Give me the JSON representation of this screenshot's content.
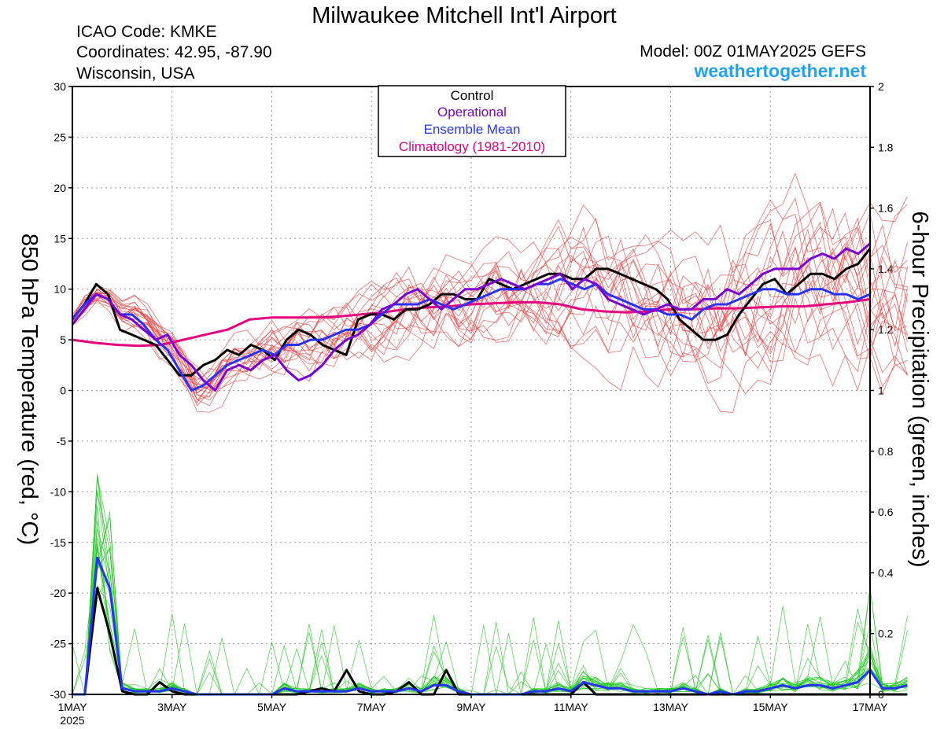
{
  "header": {
    "title": "Milwaukee Mitchell Int'l Airport",
    "icao": "ICAO Code: KMKE",
    "coordinates": "Coordinates: 42.95, -87.90",
    "region": "Wisconsin, USA",
    "model": "Model: 00Z 01MAY2025 GEFS",
    "site": "weathertogether.net"
  },
  "legend": {
    "control": "Control",
    "operational": "Operational",
    "ensemble_mean": "Ensemble Mean",
    "climatology": "Climatology (1981-2010)"
  },
  "colors": {
    "control": "#000000",
    "operational": "#7b00d6",
    "ensemble_mean": "#2633ff",
    "climatology": "#e6007e",
    "members_temp": "#f03c3c",
    "members_precip": "#1fc81f",
    "site": "#1fa3f0"
  },
  "chart_data": {
    "type": "line",
    "ylabel_left": "850 hPa Temperature (red, °C)",
    "ylabel_right": "6-hour Precipitation (green, inches)",
    "x_range_days": [
      1,
      17
    ],
    "x_ticks": [
      {
        "day": 1,
        "label": "1MAY",
        "sub": "2025"
      },
      {
        "day": 3,
        "label": "3MAY"
      },
      {
        "day": 5,
        "label": "5MAY"
      },
      {
        "day": 7,
        "label": "7MAY"
      },
      {
        "day": 9,
        "label": "9MAY"
      },
      {
        "day": 11,
        "label": "11MAY"
      },
      {
        "day": 13,
        "label": "13MAY"
      },
      {
        "day": 15,
        "label": "15MAY"
      },
      {
        "day": 17,
        "label": "17MAY"
      }
    ],
    "y_left_range": [
      -30,
      30
    ],
    "y_left_ticks": [
      30,
      25,
      20,
      15,
      10,
      5,
      0,
      -5,
      -10,
      -15,
      -20,
      -25,
      -30
    ],
    "y_right_range": [
      0,
      2
    ],
    "y_right_ticks": [
      "2",
      "1.8",
      "1.6",
      "1.4",
      "1.2",
      "1",
      "0.8",
      "0.6",
      "0.4",
      "0.2",
      "0"
    ],
    "grid": "dotted",
    "time_step_days": 0.25,
    "temp_series": [
      {
        "name": "Control",
        "values": [
          7,
          8.5,
          10.5,
          9.5,
          6,
          5.5,
          5,
          4.5,
          3,
          1.5,
          1.5,
          2.5,
          3,
          4,
          3.5,
          4.5,
          4,
          3,
          5,
          6,
          5.5,
          4.5,
          4,
          3.5,
          7,
          7.5,
          7.5,
          7,
          8,
          8,
          8.5,
          9.5,
          9.5,
          9,
          9,
          11,
          10.5,
          10,
          10.5,
          11,
          11.5,
          11.5,
          11,
          11,
          12,
          12,
          11.5,
          11,
          10.5,
          10,
          9,
          7,
          6,
          5,
          5,
          5.5,
          7.5,
          9,
          10.5,
          11,
          9.5,
          10.5,
          11.5,
          11.5,
          11,
          12,
          12.5,
          14
        ]
      },
      {
        "name": "Operational",
        "values": [
          6.5,
          8,
          9.5,
          9,
          7.5,
          7,
          6,
          5,
          5.5,
          3.5,
          2.5,
          1,
          0,
          2,
          2.5,
          2,
          3,
          3.5,
          2,
          1,
          1.5,
          2.5,
          4,
          5,
          5.5,
          6.5,
          8,
          8.5,
          9.5,
          10,
          9,
          8,
          9,
          10,
          10,
          10.5,
          11,
          10.5,
          10,
          10.5,
          11,
          11.5,
          10,
          11,
          10.5,
          9,
          8.5,
          8,
          7.5,
          8,
          8.5,
          8,
          8,
          9,
          9,
          10,
          9.5,
          10.5,
          11.5,
          12,
          12,
          12,
          13,
          13.5,
          13,
          14,
          13.5,
          14.5
        ]
      },
      {
        "name": "Ensemble Mean",
        "values": [
          7,
          8.5,
          9.5,
          9,
          7.5,
          7.5,
          6.5,
          5,
          4,
          2,
          0,
          0.5,
          1.5,
          2.5,
          3,
          3.5,
          4,
          3.5,
          4.5,
          4.5,
          5,
          5,
          5.5,
          6,
          6,
          6.5,
          7.5,
          8.5,
          8.5,
          8.5,
          9,
          8.5,
          8,
          8.5,
          9,
          9.5,
          10,
          10,
          10,
          10.5,
          10.5,
          11,
          10.5,
          10,
          10.5,
          9.5,
          9,
          8.5,
          8,
          8,
          7.5,
          7.5,
          7,
          8,
          8.5,
          8.5,
          9,
          9.5,
          10,
          10,
          9.5,
          9.5,
          10,
          10,
          9.5,
          9.5,
          9,
          9.5
        ]
      },
      {
        "name": "Climatology (1981-2010)",
        "values": [
          5,
          4.7,
          4.5,
          4.4,
          4.5,
          5,
          5.5,
          6,
          7,
          7.2,
          7.2,
          7.2,
          7.3,
          7.5,
          7.7,
          8,
          8.2,
          8.3,
          8.5,
          8.6,
          8.7,
          8.7,
          8.5,
          8,
          7.8,
          7.7,
          7.8,
          8,
          8,
          8.1,
          8.1,
          8.2,
          8.3,
          8.3,
          8.5,
          8.7,
          9
        ]
      }
    ],
    "precip_series": [
      {
        "name": "Control",
        "values": [
          0,
          0,
          0.35,
          0.2,
          0.01,
          0,
          0,
          0.04,
          0.01,
          0,
          0,
          0,
          0,
          0,
          0,
          0,
          0,
          0,
          0,
          0.01,
          0.02,
          0.01,
          0.08,
          0.01,
          0,
          0,
          0.01,
          0.04,
          0,
          0,
          0.08,
          0,
          0,
          0,
          0,
          0,
          0,
          0,
          0,
          0,
          0,
          0.04,
          0,
          0,
          0,
          0,
          0,
          0,
          0,
          0,
          0,
          0,
          0,
          0,
          0,
          0,
          0,
          0,
          0,
          0,
          0,
          0,
          0,
          0,
          0,
          0,
          0,
          0
        ]
      },
      {
        "name": "Ensemble Mean",
        "values": [
          0,
          0,
          0.45,
          0.35,
          0.02,
          0.01,
          0.01,
          0.01,
          0.02,
          0.01,
          0,
          0,
          0,
          0,
          0,
          0,
          0,
          0.02,
          0.01,
          0.01,
          0.01,
          0.01,
          0.01,
          0.02,
          0.01,
          0.01,
          0.01,
          0.02,
          0.01,
          0.03,
          0.03,
          0.01,
          0,
          0,
          0,
          0,
          0,
          0.01,
          0.01,
          0.02,
          0.01,
          0.04,
          0.03,
          0.02,
          0.02,
          0.01,
          0.01,
          0.01,
          0.01,
          0.02,
          0.01,
          0,
          0.01,
          0,
          0.01,
          0.01,
          0.02,
          0.03,
          0.02,
          0.03,
          0.03,
          0.02,
          0.03,
          0.04,
          0.08,
          0.02,
          0.02,
          0.03
        ]
      }
    ]
  }
}
